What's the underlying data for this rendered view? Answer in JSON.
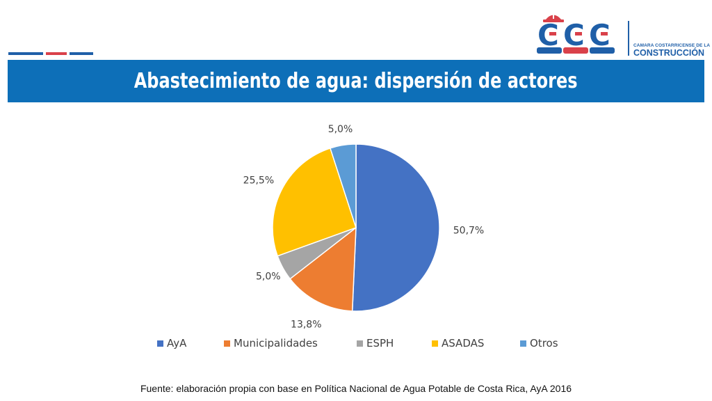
{
  "header": {
    "title": "Abastecimiento de agua: dispersión de actores",
    "accent_colors": [
      "#1f5fa8",
      "#d9414a",
      "#1f5fa8"
    ]
  },
  "logo": {
    "mark": "CCC",
    "line1": "CAMARA COSTARRICENSE DE LA",
    "line2": "CONSTRUCCIÓN",
    "colors": {
      "blue": "#1f5fa8",
      "red": "#d9414a"
    }
  },
  "chart_data": {
    "type": "pie",
    "title": "",
    "categories": [
      "AyA",
      "Municipalidades",
      "ESPH",
      "ASADAS",
      "Otros"
    ],
    "values": [
      50.7,
      13.8,
      5.0,
      25.5,
      5.0
    ],
    "labels": [
      "50,7%",
      "13,8%",
      "5,0%",
      "25,5%",
      "5,0%"
    ],
    "colors": [
      "#4472c4",
      "#ed7d31",
      "#a5a5a5",
      "#ffc000",
      "#5b9bd5"
    ],
    "legend": "bottom",
    "start": "top, clockwise"
  },
  "footer": {
    "source": "Fuente: elaboración propia con base en Política Nacional de Agua Potable de Costa Rica, AyA 2016"
  }
}
